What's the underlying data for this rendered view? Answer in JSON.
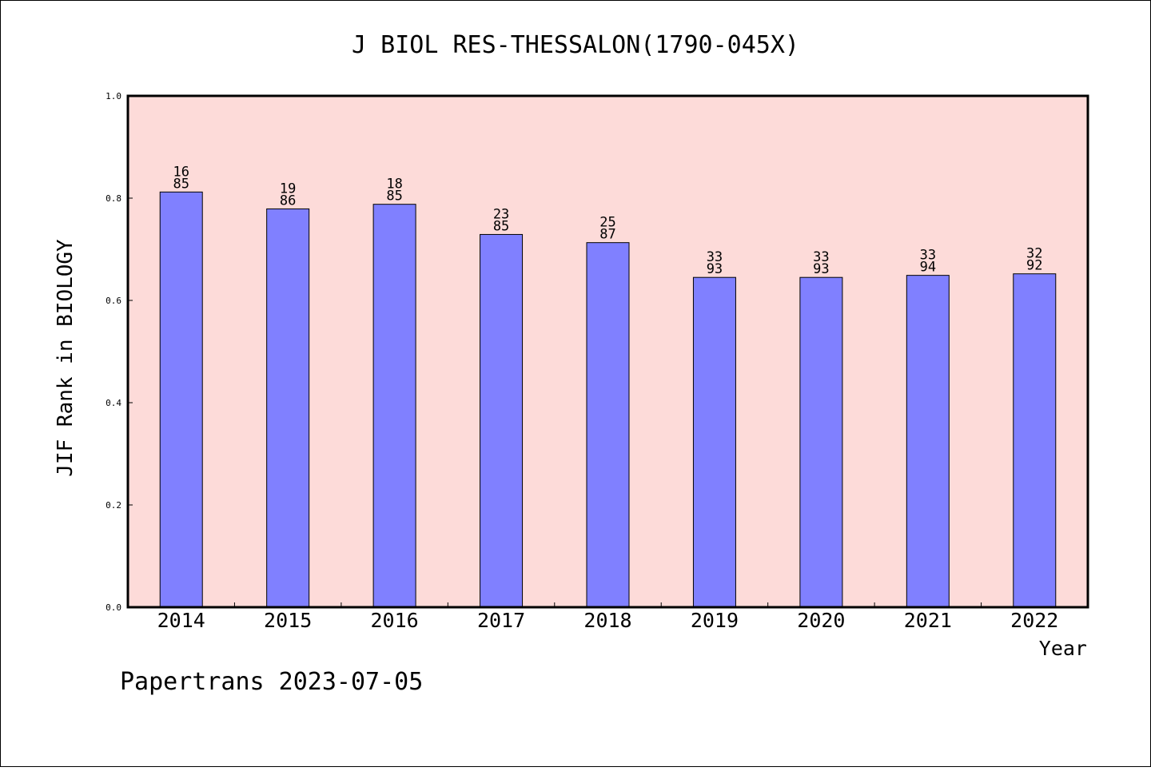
{
  "colors": {
    "page_background": "#ffffff",
    "plot_background": "#fddbd9",
    "bar_fill": "#8080ff",
    "bar_stroke": "#000000",
    "frame": "#000000"
  },
  "footer": {
    "text": "Papertrans 2023-07-05"
  },
  "chart_data": {
    "type": "bar",
    "title": "J BIOL RES-THESSALON(1790-045X)",
    "xlabel": "Year",
    "ylabel": "JIF Rank in BIOLOGY",
    "ylim": [
      0,
      1.0
    ],
    "yticks": [
      "0.0",
      "0.2",
      "0.4",
      "0.6",
      "0.8",
      "1.0"
    ],
    "grid": false,
    "categories": [
      "2014",
      "2015",
      "2016",
      "2017",
      "2018",
      "2019",
      "2020",
      "2021",
      "2022"
    ],
    "values": [
      0.812,
      0.779,
      0.788,
      0.729,
      0.713,
      0.645,
      0.645,
      0.649,
      0.652
    ],
    "ranks": [
      "16",
      "19",
      "18",
      "23",
      "25",
      "33",
      "33",
      "33",
      "32"
    ],
    "totals": [
      "85",
      "86",
      "85",
      "85",
      "87",
      "93",
      "93",
      "94",
      "92"
    ]
  }
}
